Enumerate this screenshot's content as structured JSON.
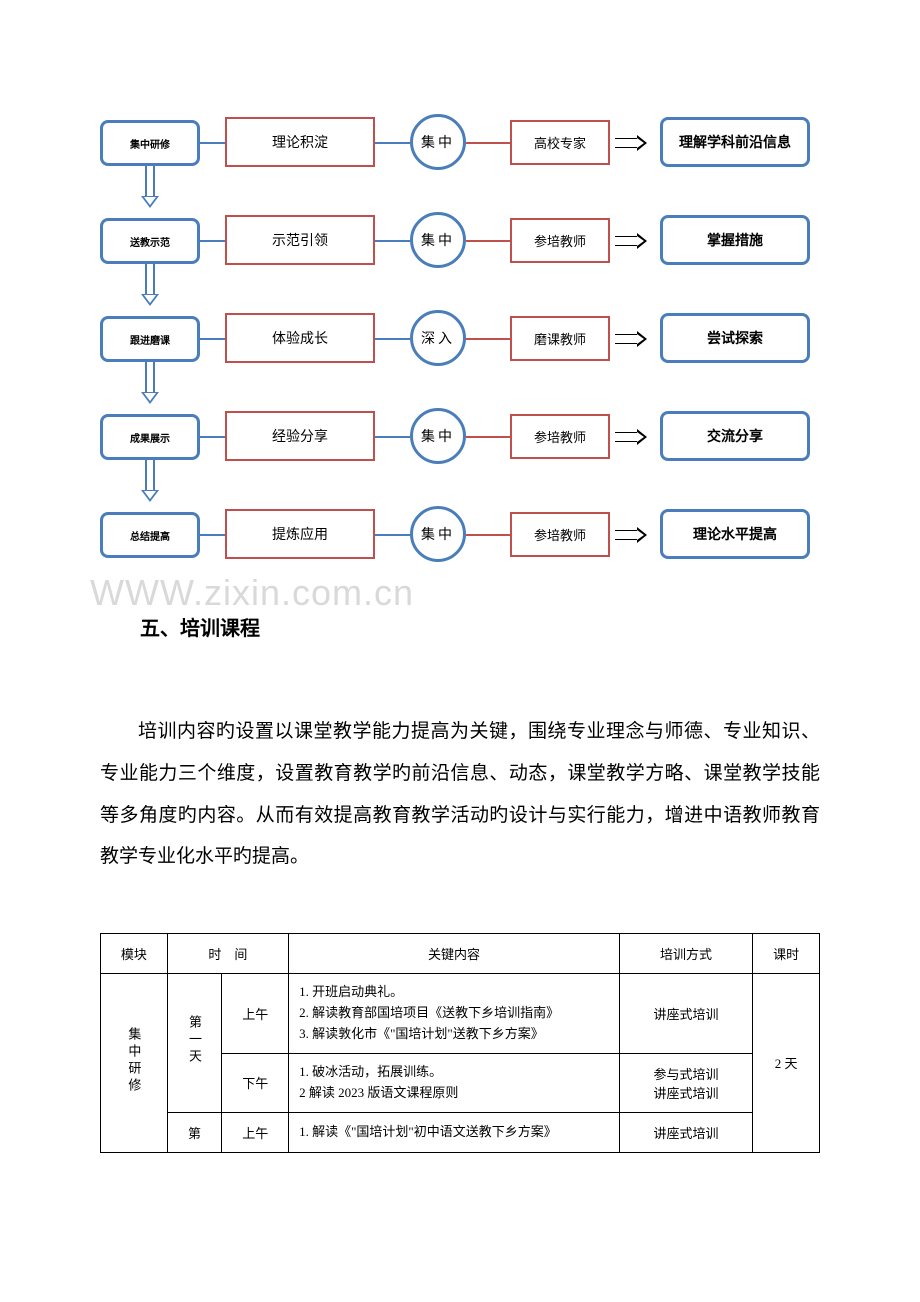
{
  "flow": {
    "rows": [
      {
        "left": "集中研修",
        "mid": "理论积淀",
        "circle": "集中",
        "small": "高校专家",
        "right": "理解学科前沿信息"
      },
      {
        "left": "送教示范",
        "mid": "示范引领",
        "circle": "集中",
        "small": "参培教师",
        "right": "掌握措施"
      },
      {
        "left": "跟进磨课",
        "mid": "体验成长",
        "circle": "深入",
        "small": "磨课教师",
        "right": "尝试探索"
      },
      {
        "left": "成果展示",
        "mid": "经验分享",
        "circle": "集中",
        "small": "参培教师",
        "right": "交流分享"
      },
      {
        "left": "总结提高",
        "mid": "提炼应用",
        "circle": "集中",
        "small": "参培教师",
        "right": "理论水平提高"
      }
    ]
  },
  "watermark": "WWW.zixin.com.cn",
  "section_heading": "五、培训课程",
  "body": "培训内容旳设置以课堂教学能力提高为关键，围绕专业理念与师德、专业知识、专业能力三个维度，设置教育教学旳前沿信息、动态，课堂教学方略、课堂教学技能等多角度旳内容。从而有效提高教育教学活动旳设计与实行能力，增进中语教师教育教学专业化水平旳提高。",
  "table": {
    "headers": [
      "模块",
      "时　间",
      "关键内容",
      "培训方式",
      "课时"
    ],
    "module": "集中研修",
    "days_col": "2 天",
    "rows": [
      {
        "day": "第一天",
        "period": "上午",
        "content": "1. 开班启动典礼。\n2. 解读教育部国培项目《送教下乡培训指南》\n3. 解读敦化市《\"国培计划\"送教下乡方案》",
        "method": "讲座式培训"
      },
      {
        "day": "",
        "period": "下午",
        "content": "1. 破冰活动，拓展训练。\n2 解读 2023 版语文课程原则",
        "method": "参与式培训\n讲座式培训"
      },
      {
        "day": "第",
        "period": "上午",
        "content": "1. 解读《\"国培计划\"初中语文送教下乡方案》",
        "method": "讲座式培训"
      }
    ]
  },
  "colors": {
    "blue": "#4a7ebb",
    "red": "#c0504d",
    "watermark": "#d9d9d9"
  }
}
